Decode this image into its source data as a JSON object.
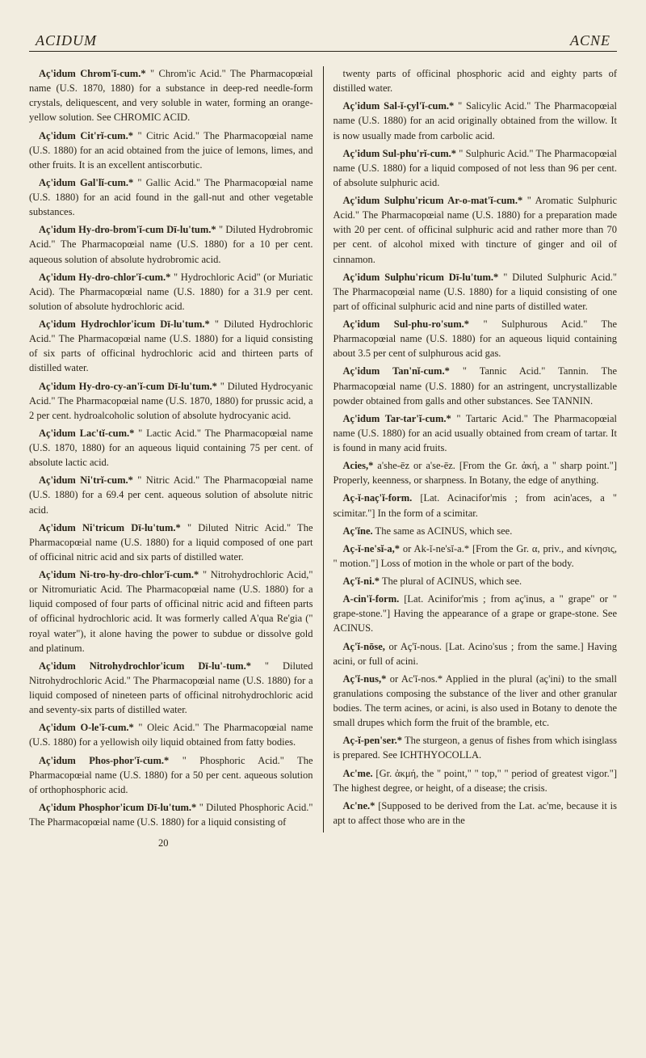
{
  "header": {
    "left": "ACIDUM",
    "right": "ACNE"
  },
  "pageNumber": "20",
  "left": [
    {
      "term": "Aç'idum Chrom'ĭ-cum.*",
      "body": " \" Chrom'ic Acid.\" The Pharmacopœial name (U.S. 1870, 1880) for a substance in deep-red needle-form crystals, deliquescent, and very soluble in water, forming an orange-yellow solution. See CHROMIC ACID."
    },
    {
      "term": "Aç'idum Cit'rĭ-cum.*",
      "body": " \" Citric Acid.\" The Pharmacopœial name (U.S. 1880) for an acid obtained from the juice of lemons, limes, and other fruits. It is an excellent antiscorbutic."
    },
    {
      "term": "Aç'idum Gal'lĭ-cum.*",
      "body": " \" Gallic Acid.\" The Pharmacopœial name (U.S. 1880) for an acid found in the gall-nut and other vegetable substances."
    },
    {
      "term": "Aç'idum Hy-dro-brom'ĭ-cum Dī-lu'tum.*",
      "body": " \" Diluted Hydrobromic Acid.\" The Pharmacopœial name (U.S. 1880) for a 10 per cent. aqueous solution of absolute hydrobromic acid."
    },
    {
      "term": "Aç'idum Hy-dro-chlor'ĭ-cum.*",
      "body": " \" Hydrochloric Acid\" (or Muriatic Acid). The Pharmacopœial name (U.S. 1880) for a 31.9 per cent. solution of absolute hydrochloric acid."
    },
    {
      "term": "Aç'idum Hydrochlor'icum Dī-lu'tum.*",
      "body": " \" Diluted Hydrochloric Acid.\" The Pharmacopœial name (U.S. 1880) for a liquid consisting of six parts of officinal hydrochloric acid and thirteen parts of distilled water."
    },
    {
      "term": "Aç'idum Hy-dro-cy-an'ĭ-cum Dī-lu'tum.*",
      "body": " \" Diluted Hydrocyanic Acid.\" The Pharmacopœial name (U.S. 1870, 1880) for prussic acid, a 2 per cent. hydroalcoholic solution of absolute hydrocyanic acid."
    },
    {
      "term": "Aç'idum Lac'tĭ-cum.*",
      "body": " \" Lactic Acid.\" The Pharmacopœial name (U.S. 1870, 1880) for an aqueous liquid containing 75 per cent. of absolute lactic acid."
    },
    {
      "term": "Aç'idum Ni'trĭ-cum.*",
      "body": " \" Nitric Acid.\" The Pharmacopœial name (U.S. 1880) for a 69.4 per cent. aqueous solution of absolute nitric acid."
    },
    {
      "term": "Aç'idum Ni'tricum Dī-lu'tum.*",
      "body": " \" Diluted Nitric Acid.\" The Pharmacopœial name (U.S. 1880) for a liquid composed of one part of officinal nitric acid and six parts of distilled water."
    },
    {
      "term": "Aç'idum Ni-tro-hy-dro-chlor'ĭ-cum.*",
      "body": " \" Nitrohydrochloric Acid,\" or Nitromuriatic Acid. The Pharmacopœial name (U.S. 1880) for a liquid composed of four parts of officinal nitric acid and fifteen parts of officinal hydrochloric acid. It was formerly called A'qua Re'gia (\" royal water\"), it alone having the power to subdue or dissolve gold and platinum."
    },
    {
      "term": "Aç'idum Nitrohydrochlor'icum Dī-lu'-tum.*",
      "body": " \" Diluted Nitrohydrochloric Acid.\" The Pharmacopœial name (U.S. 1880) for a liquid composed of nineteen parts of officinal nitrohydrochloric acid and seventy-six parts of distilled water."
    },
    {
      "term": "Aç'idum O-le'ĭ-cum.*",
      "body": " \" Oleic Acid.\" The Pharmacopœial name (U.S. 1880) for a yellowish oily liquid obtained from fatty bodies."
    },
    {
      "term": "Aç'idum Phos-phor'ĭ-cum.*",
      "body": " \" Phosphoric Acid.\" The Pharmacopœial name (U.S. 1880) for a 50 per cent. aqueous solution of orthophosphoric acid."
    },
    {
      "term": "Aç'idum Phosphor'icum Dī-lu'tum.*",
      "body": " \" Diluted Phosphoric Acid.\" The Pharmacopœial name (U.S. 1880) for a liquid consisting of"
    }
  ],
  "right": [
    {
      "term": "",
      "body": "twenty parts of officinal phosphoric acid and eighty parts of distilled water."
    },
    {
      "term": "Aç'idum Sal-ĭ-çyl'ĭ-cum.*",
      "body": " \" Salicylic Acid.\" The Pharmacopœial name (U.S. 1880) for an acid originally obtained from the willow. It is now usually made from carbolic acid."
    },
    {
      "term": "Aç'idum Sul-phu'rĭ-cum.*",
      "body": " \" Sulphuric Acid.\" The Pharmacopœial name (U.S. 1880) for a liquid composed of not less than 96 per cent. of absolute sulphuric acid."
    },
    {
      "term": "Aç'idum Sulphu'ricum Ar-o-mat'ĭ-cum.*",
      "body": " \" Aromatic Sulphuric Acid.\" The Pharmacopœial name (U.S. 1880) for a preparation made with 20 per cent. of officinal sulphuric acid and rather more than 70 per cent. of alcohol mixed with tincture of ginger and oil of cinnamon."
    },
    {
      "term": "Aç'idum Sulphu'ricum Dī-lu'tum.*",
      "body": " \" Diluted Sulphuric Acid.\" The Pharmacopœial name (U.S. 1880) for a liquid consisting of one part of officinal sulphuric acid and nine parts of distilled water."
    },
    {
      "term": "Aç'idum Sul-phu-ro'sum.*",
      "body": " \" Sulphurous Acid.\" The Pharmacopœial name (U.S. 1880) for an aqueous liquid containing about 3.5 per cent of sulphurous acid gas."
    },
    {
      "term": "Aç'idum Tan'nĭ-cum.*",
      "body": " \" Tannic Acid.\" Tannin. The Pharmacopœial name (U.S. 1880) for an astringent, uncrystallizable powder obtained from galls and other substances. See TANNIN."
    },
    {
      "term": "Aç'idum Tar-tar'ĭ-cum.*",
      "body": " \" Tartaric Acid.\" The Pharmacopœial name (U.S. 1880) for an acid usually obtained from cream of tartar. It is found in many acid fruits."
    },
    {
      "term": "Acies,*",
      "body": " a'she-ēz or a'se-ēz. [From the Gr. ἀκή, a \" sharp point.\"] Properly, keenness, or sharpness. In Botany, the edge of anything."
    },
    {
      "term": "Aç-ĭ-naç'ĭ-form.",
      "body": " [Lat. Acinacifor'mis ; from acin'aces, a \" scimitar.\"] In the form of a scimitar."
    },
    {
      "term": "Aç'ĭne.",
      "body": " The same as ACINUS, which see."
    },
    {
      "term": "Aç-ĭ-ne'sĭ-a,*",
      "body": " or Ak-ĭ-ne'sĭ-a.* [From the Gr. α, priv., and κίνησις, \" motion.\"] Loss of motion in the whole or part of the body."
    },
    {
      "term": "Aç'ĭ-ni.*",
      "body": " The plural of ACINUS, which see."
    },
    {
      "term": "A-cin'ĭ-form.",
      "body": " [Lat. Acinifor'mis ; from aç'inus, a \" grape\" or \" grape-stone.\"] Having the appearance of a grape or grape-stone. See ACINUS."
    },
    {
      "term": "Aç'ĭ-nōse,",
      "body": " or Aç'ĭ-nous. [Lat. Acino'sus ; from the same.] Having acini, or full of acini."
    },
    {
      "term": "Aç'ĭ-nus,*",
      "body": " or Ac'ĭ-nos.* Applied in the plural (aç'ini) to the small granulations composing the substance of the liver and other granular bodies. The term acines, or acini, is also used in Botany to denote the small drupes which form the fruit of the bramble, etc."
    },
    {
      "term": "Aç-ĭ-pen'ser.*",
      "body": " The sturgeon, a genus of fishes from which isinglass is prepared. See ICHTHYOCOLLA."
    },
    {
      "term": "Ac'me.",
      "body": " [Gr. ἀκμή, the \" point,\" \" top,\" \" period of greatest vigor.\"] The highest degree, or height, of a disease; the crisis."
    },
    {
      "term": "Ac'ne.*",
      "body": " [Supposed to be derived from the Lat. ac'me, because it is apt to affect those who are in the"
    }
  ]
}
